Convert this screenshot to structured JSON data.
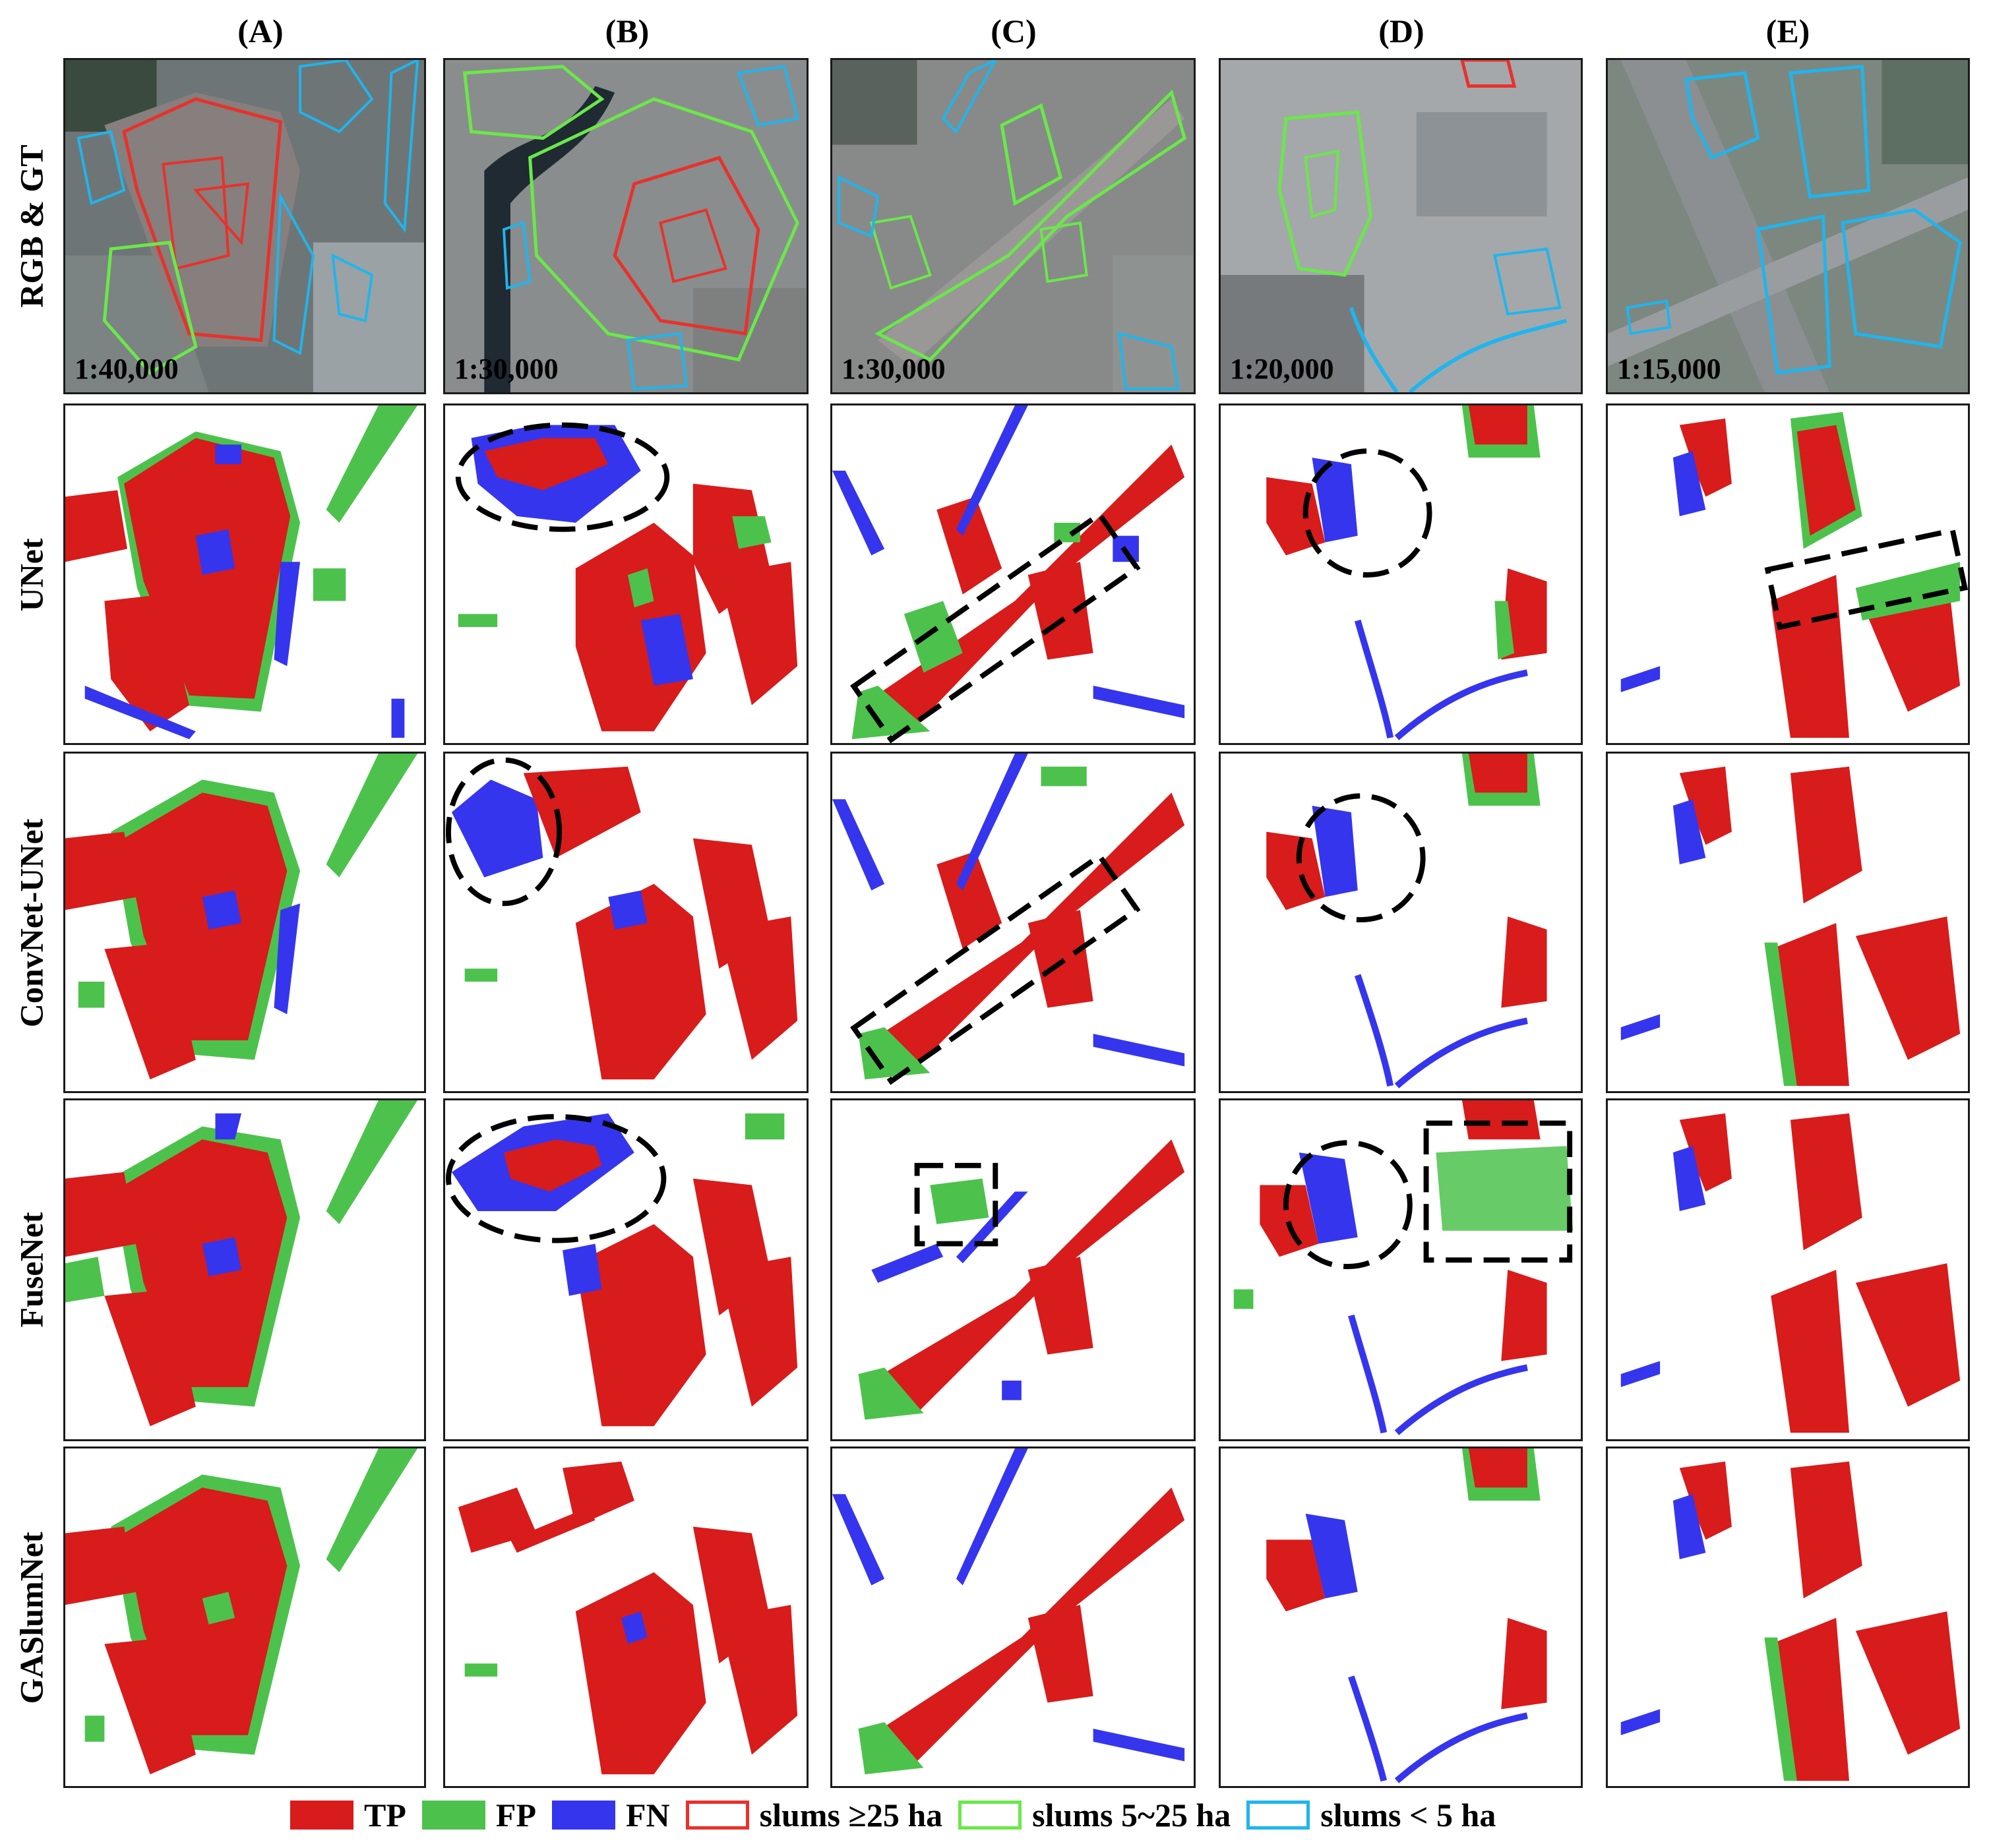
{
  "columns": [
    "(A)",
    "(B)",
    "(C)",
    "(D)",
    "(E)"
  ],
  "rows": [
    "RGB & GT",
    "UNet",
    "ConvNet-UNet",
    "FuseNet",
    "GASlumNet"
  ],
  "scales": [
    "1:40,000",
    "1:30,000",
    "1:30,000",
    "1:20,000",
    "1:15,000"
  ],
  "legend": [
    {
      "label": "TP",
      "type": "fill",
      "color": "#d81b1b"
    },
    {
      "label": "FP",
      "type": "fill",
      "color": "#4cc24c"
    },
    {
      "label": "FN",
      "type": "fill",
      "color": "#3535ee"
    },
    {
      "label": "slums ≥25 ha",
      "type": "outline",
      "color": "#e8312b"
    },
    {
      "label": "slums 5~25 ha",
      "type": "outline",
      "color": "#6ae84a"
    },
    {
      "label": "slums < 5 ha",
      "type": "outline",
      "color": "#1fb5ee"
    }
  ],
  "colors": {
    "tp": "#d81b1b",
    "fp": "#4cc24c",
    "fn": "#3535ee",
    "gt_large": "#e8312b",
    "gt_mid": "#6ae84a",
    "gt_small": "#1fb5ee"
  },
  "highlight_markers": {
    "UNet": [
      "B:ellipse",
      "C:rectangle",
      "D:circle",
      "E:rectangle"
    ],
    "ConvNet-UNet": [
      "B:ellipse",
      "C:rectangle",
      "D:circle"
    ],
    "FuseNet": [
      "B:ellipse",
      "C:square",
      "D:circle",
      "D:square"
    ],
    "GASlumNet": []
  }
}
